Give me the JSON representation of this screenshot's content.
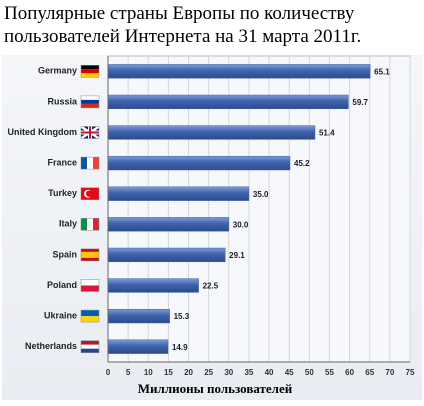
{
  "chart_data": {
    "type": "bar",
    "orientation": "horizontal",
    "title": "Популярные страны Европы по количеству пользователей Интернета на 31 марта 2011г.",
    "x_label": "Миллионы пользователей",
    "categories": [
      "Germany",
      "Russia",
      "United Kingdom",
      "France",
      "Turkey",
      "Italy",
      "Spain",
      "Poland",
      "Ukraine",
      "Netherlands"
    ],
    "values": [
      65.1,
      59.7,
      51.4,
      45.2,
      35.0,
      30.0,
      29.1,
      22.5,
      15.3,
      14.9
    ],
    "value_labels": [
      "65.1",
      "59.7",
      "51.4",
      "45.2",
      "35.0",
      "30.0",
      "29.1",
      "22.5",
      "15.3",
      "14.9"
    ],
    "color": "#3e63ad",
    "xlim": [
      0,
      75
    ],
    "xticks": [
      0,
      5,
      10,
      15,
      20,
      25,
      30,
      35,
      40,
      45,
      50,
      55,
      60,
      65,
      70,
      75
    ],
    "grid": true
  }
}
